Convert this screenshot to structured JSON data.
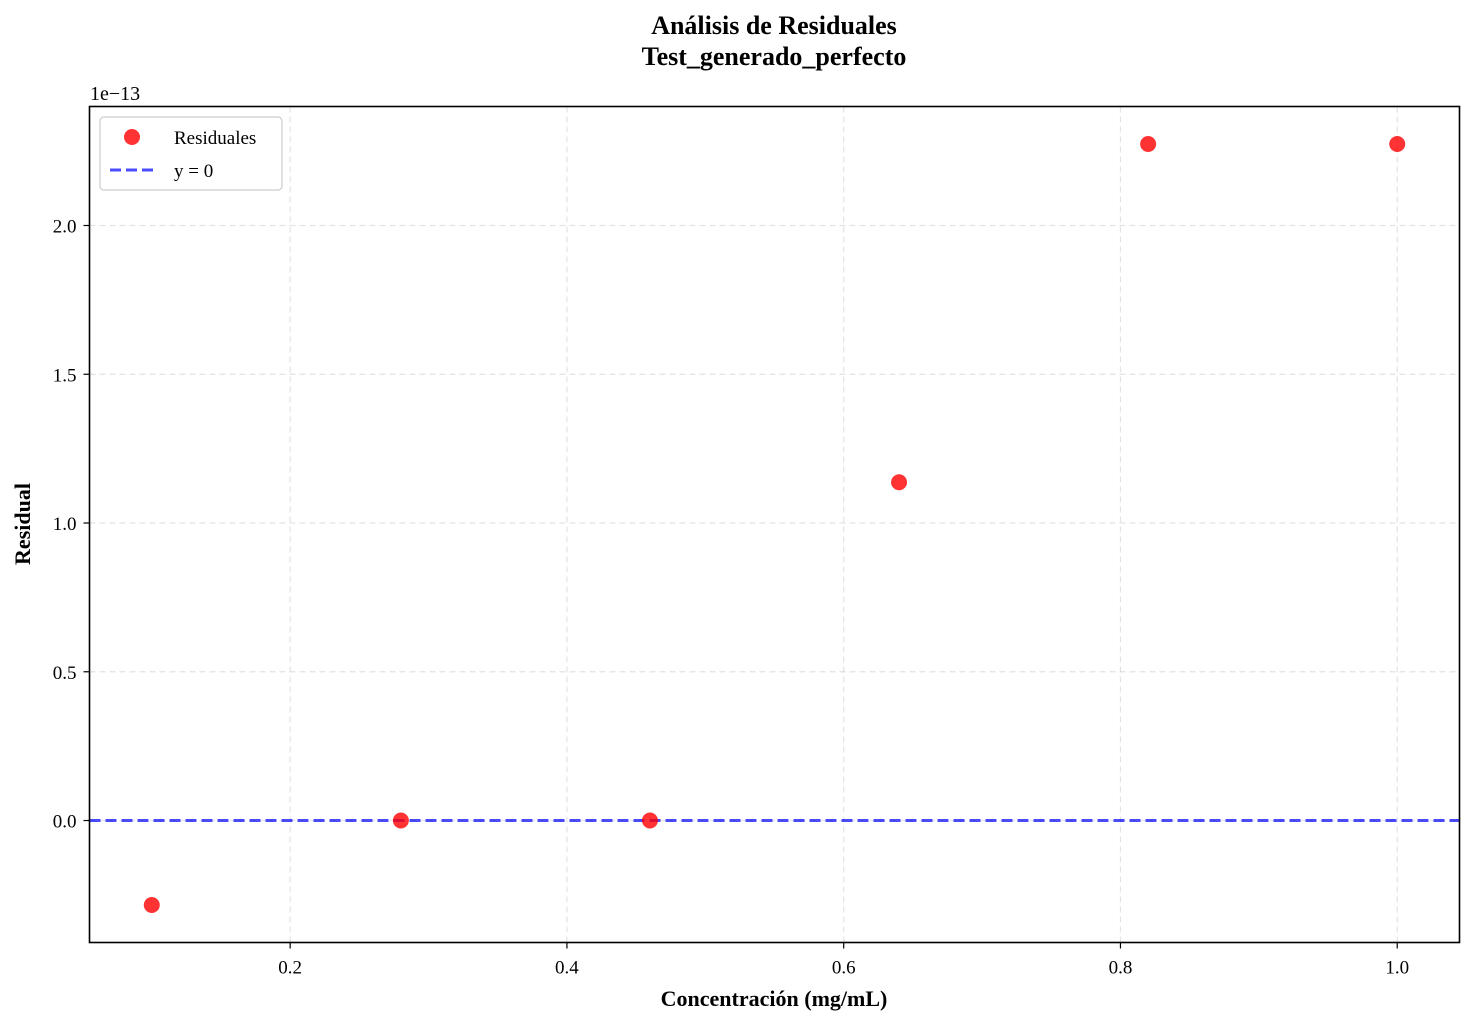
{
  "chart_data": {
    "type": "scatter",
    "title": "Análisis de Residuales",
    "subtitle": "Test_generado_perfecto",
    "xlabel": "Concentración (mg/mL)",
    "ylabel": "Residual",
    "y_offset_label": "1e−13",
    "xlim": [
      0.055,
      1.045
    ],
    "ylim": [
      -0.41,
      2.4
    ],
    "x_ticks": [
      0.2,
      0.4,
      0.6,
      0.8,
      1.0
    ],
    "x_tick_labels": [
      "0.2",
      "0.4",
      "0.6",
      "0.8",
      "1.0"
    ],
    "y_ticks": [
      0.0,
      0.5,
      1.0,
      1.5,
      2.0
    ],
    "y_tick_labels": [
      "0.0",
      "0.5",
      "1.0",
      "1.5",
      "2.0"
    ],
    "grid": true,
    "legend_placement": "top-left",
    "series": [
      {
        "name": "Residuales",
        "kind": "scatter",
        "color": "#ff0000",
        "x": [
          0.1,
          0.28,
          0.46,
          0.64,
          0.82,
          1.0
        ],
        "y": [
          -0.284,
          0.0,
          0.0,
          1.137,
          2.274,
          2.274
        ]
      },
      {
        "name": "y = 0",
        "kind": "hline",
        "color": "#0000ff",
        "y": 0
      }
    ]
  }
}
